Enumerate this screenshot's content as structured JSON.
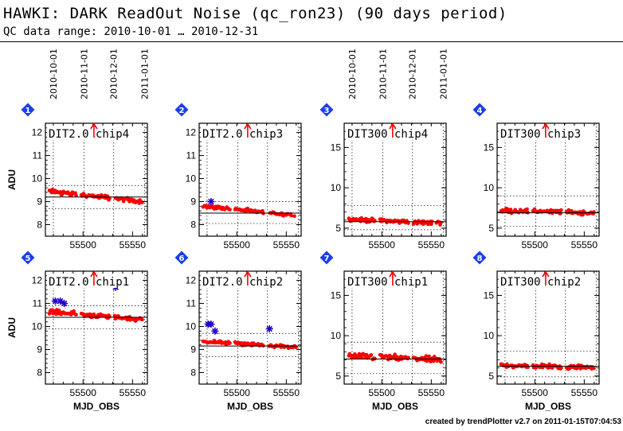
{
  "page": {
    "title": "HAWKI: DARK ReadOut Noise (qc_ron23) (90 days period)",
    "subtitle": "QC data range: 2010-10-01 … 2010-12-31",
    "footer": "created by trendPlotter v2.7 on 2011-01-15T07:04:53"
  },
  "colors": {
    "points": "#ff0000",
    "outliers": "#2200cc",
    "badge": "#1a3ee8",
    "arrow": "#ff0000",
    "axes": "#000000"
  },
  "date_axis": {
    "ticks": [
      {
        "label": "2010-10-01",
        "mjd": 55470
      },
      {
        "label": "2010-11-01",
        "mjd": 55501
      },
      {
        "label": "2010-12-01",
        "mjd": 55531
      },
      {
        "label": "2011-01-01",
        "mjd": 55562
      }
    ],
    "shown_on_panels": [
      1,
      3
    ]
  },
  "chart_data": [
    {
      "type": "scatter",
      "panel": 1,
      "title": "DIT2.0 chip4",
      "xlabel": "",
      "ylabel": "ADU",
      "xlim": [
        55462,
        55565
      ],
      "ylim": [
        7.5,
        12.4
      ],
      "yticks": [
        8,
        9,
        10,
        11,
        12
      ],
      "xticks": [
        55500,
        55550
      ],
      "median": 9.2,
      "band": [
        8.7,
        9.7
      ],
      "trend": [
        9.45,
        9.0
      ],
      "spread": 0.13,
      "outliers": []
    },
    {
      "type": "scatter",
      "panel": 2,
      "title": "DIT2.0 chip3",
      "xlabel": "",
      "ylabel": "",
      "xlim": [
        55462,
        55565
      ],
      "ylim": [
        7.5,
        12.4
      ],
      "yticks": [
        8,
        9,
        10,
        11,
        12
      ],
      "xticks": [
        55500,
        55550
      ],
      "median": 8.5,
      "band": [
        8.05,
        9.0
      ],
      "trend": [
        8.8,
        8.4
      ],
      "spread": 0.1,
      "outliers": [
        {
          "x": 55474,
          "y": 9.0
        }
      ]
    },
    {
      "type": "scatter",
      "panel": 3,
      "title": "DIT300 chip4",
      "xlabel": "",
      "ylabel": "",
      "xlim": [
        55462,
        55565
      ],
      "ylim": [
        4,
        18
      ],
      "yticks": [
        5,
        10,
        15
      ],
      "xticks": [
        55500,
        55550
      ],
      "median": 5.8,
      "band": [
        4.8,
        7.8
      ],
      "trend": [
        6.1,
        5.6
      ],
      "spread": 0.35,
      "outliers": []
    },
    {
      "type": "scatter",
      "panel": 4,
      "title": "DIT300 chip3",
      "xlabel": "",
      "ylabel": "",
      "xlim": [
        55462,
        55565
      ],
      "ylim": [
        4,
        18
      ],
      "yticks": [
        5,
        10,
        15
      ],
      "xticks": [
        55500,
        55550
      ],
      "median": 6.9,
      "band": [
        5.2,
        9.0
      ],
      "trend": [
        7.2,
        6.9
      ],
      "spread": 0.4,
      "outliers": []
    },
    {
      "type": "scatter",
      "panel": 5,
      "title": "DIT2.0 chip1",
      "xlabel": "MJD_OBS",
      "ylabel": "ADU",
      "xlim": [
        55462,
        55565
      ],
      "ylim": [
        7.5,
        12.4
      ],
      "yticks": [
        8,
        9,
        10,
        11,
        12
      ],
      "xticks": [
        55500,
        55550
      ],
      "median": 10.4,
      "band": [
        9.9,
        10.9
      ],
      "trend": [
        10.65,
        10.3
      ],
      "spread": 0.13,
      "outliers": [
        {
          "x": 55472,
          "y": 11.1
        },
        {
          "x": 55477,
          "y": 11.1
        },
        {
          "x": 55481,
          "y": 11.0
        },
        {
          "x": 55533,
          "y": 11.7
        }
      ]
    },
    {
      "type": "scatter",
      "panel": 6,
      "title": "DIT2.0 chip2",
      "xlabel": "MJD_OBS",
      "ylabel": "",
      "xlim": [
        55462,
        55565
      ],
      "ylim": [
        7.5,
        12.4
      ],
      "yticks": [
        8,
        9,
        10,
        11,
        12
      ],
      "xticks": [
        55500,
        55550
      ],
      "median": 9.15,
      "band": [
        8.7,
        9.7
      ],
      "trend": [
        9.35,
        9.1
      ],
      "spread": 0.1,
      "outliers": [
        {
          "x": 55471,
          "y": 10.1
        },
        {
          "x": 55474,
          "y": 10.1
        },
        {
          "x": 55478,
          "y": 9.8
        },
        {
          "x": 55533,
          "y": 9.9
        }
      ]
    },
    {
      "type": "scatter",
      "panel": 7,
      "title": "DIT300 chip1",
      "xlabel": "MJD_OBS",
      "ylabel": "",
      "xlim": [
        55462,
        55565
      ],
      "ylim": [
        4,
        18
      ],
      "yticks": [
        5,
        10,
        15
      ],
      "xticks": [
        55500,
        55550
      ],
      "median": 7.1,
      "band": [
        5.3,
        9.2
      ],
      "trend": [
        7.5,
        7.0
      ],
      "spread": 0.5,
      "outliers": []
    },
    {
      "type": "scatter",
      "panel": 8,
      "title": "DIT300 chip2",
      "xlabel": "MJD_OBS",
      "ylabel": "",
      "xlim": [
        55462,
        55565
      ],
      "ylim": [
        4,
        18
      ],
      "yticks": [
        5,
        10,
        15
      ],
      "xticks": [
        55500,
        55550
      ],
      "median": 6.2,
      "band": [
        4.9,
        8.1
      ],
      "trend": [
        6.3,
        6.1
      ],
      "spread": 0.4,
      "outliers": []
    }
  ]
}
